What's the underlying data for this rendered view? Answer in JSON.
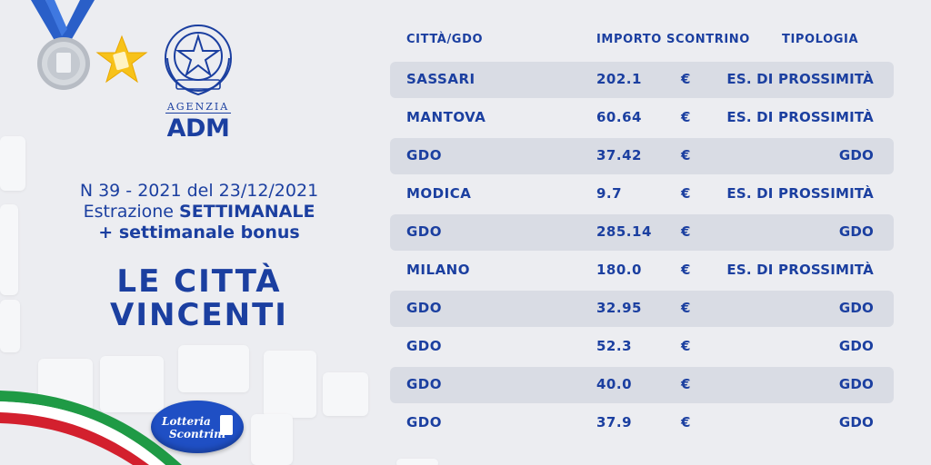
{
  "header": {
    "agency_label": "AGENZIA",
    "agency_name": "ADM"
  },
  "draw": {
    "line1": "N 39 - 2021 del  23/12/2021",
    "line2_prefix": "Estrazione ",
    "line2_bold": "SETTIMANALE",
    "line3": "+ settimanale bonus"
  },
  "headline": {
    "line1": "LE CITTÀ",
    "line2": "VINCENTI"
  },
  "logo": {
    "text1": "Lotteria",
    "text2": "Scontrini"
  },
  "table": {
    "columns": {
      "city": "CITTÀ/GDO",
      "amount": "IMPORTO SCONTRINO",
      "type": "TIPOLOGIA"
    },
    "rows": [
      {
        "city": "SASSARI",
        "amount": "202.1",
        "currency": "€",
        "type": "ES. DI PROSSIMITÀ"
      },
      {
        "city": "MANTOVA",
        "amount": "60.64",
        "currency": "€",
        "type": "ES. DI PROSSIMITÀ"
      },
      {
        "city": "GDO",
        "amount": "37.42",
        "currency": "€",
        "type": "GDO"
      },
      {
        "city": "MODICA",
        "amount": "9.7",
        "currency": "€",
        "type": "ES. DI PROSSIMITÀ"
      },
      {
        "city": "GDO",
        "amount": "285.14",
        "currency": "€",
        "type": "GDO"
      },
      {
        "city": "MILANO",
        "amount": "180.0",
        "currency": "€",
        "type": "ES. DI PROSSIMITÀ"
      },
      {
        "city": "GDO",
        "amount": "32.95",
        "currency": "€",
        "type": "GDO"
      },
      {
        "city": "GDO",
        "amount": "52.3",
        "currency": "€",
        "type": "GDO"
      },
      {
        "city": "GDO",
        "amount": "40.0",
        "currency": "€",
        "type": "GDO"
      },
      {
        "city": "GDO",
        "amount": "37.9",
        "currency": "€",
        "type": "GDO"
      }
    ]
  },
  "colors": {
    "brand_blue": "#1b3fa0",
    "row_shade": "#d9dce4",
    "background": "#ecedf1"
  },
  "icons": [
    "medal-icon",
    "star-icon",
    "republic-emblem-icon",
    "italian-flag-ribbon-icon",
    "lotteria-scontrini-logo"
  ]
}
